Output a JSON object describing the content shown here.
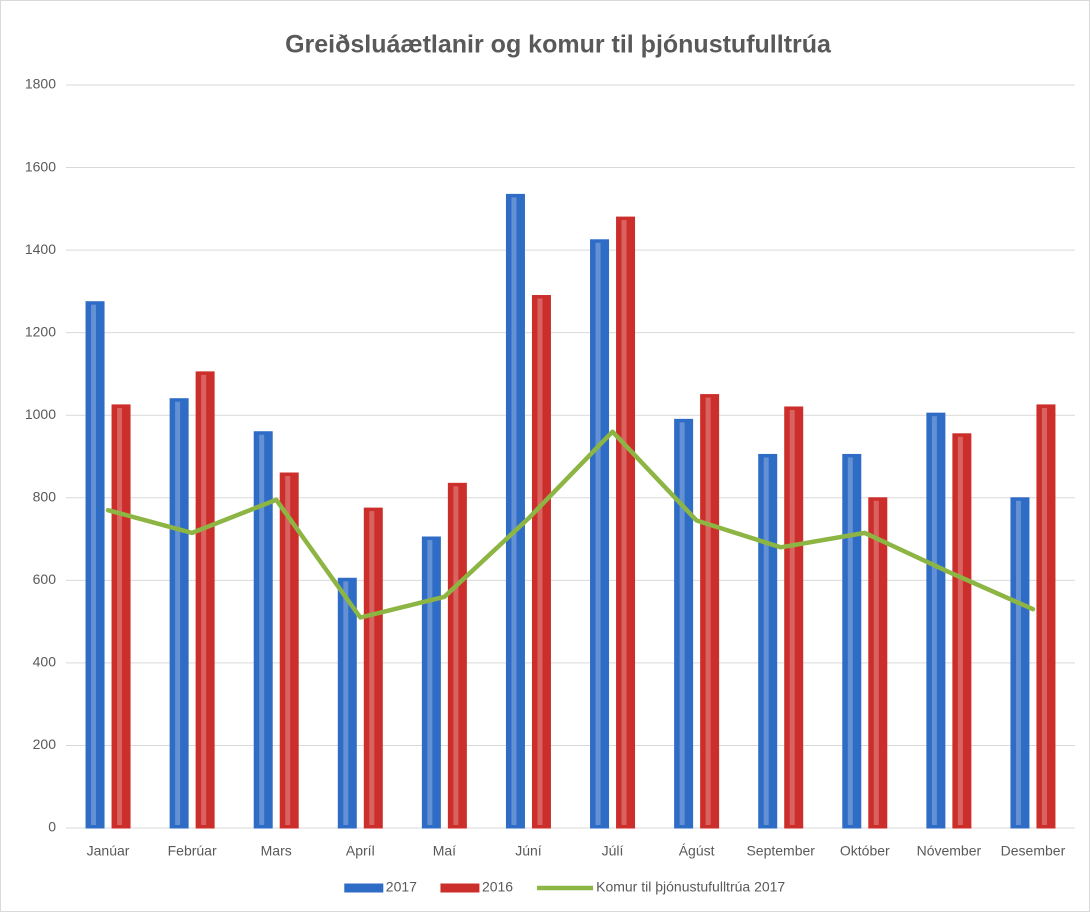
{
  "chart_data": {
    "type": "bar",
    "title": "Greiðsluáætlanir og komur til þjónustufulltrúa",
    "categories": [
      "Janúar",
      "Febrúar",
      "Mars",
      "Apríl",
      "Maí",
      "Júní",
      "Júlí",
      "Ágúst",
      "September",
      "Október",
      "Nóvember",
      "Desember"
    ],
    "series": [
      {
        "name": "2017",
        "type": "bar",
        "color": "#2f6cc6",
        "values": [
          1275,
          1040,
          960,
          605,
          705,
          1535,
          1425,
          990,
          905,
          905,
          1005,
          800
        ]
      },
      {
        "name": "2016",
        "type": "bar",
        "color": "#cc2f2b",
        "values": [
          1025,
          1105,
          860,
          775,
          835,
          1290,
          1480,
          1050,
          1020,
          800,
          955,
          1025
        ]
      },
      {
        "name": "Komur til þjónustufulltrúa 2017",
        "type": "line",
        "color": "#8db543",
        "values": [
          770,
          715,
          795,
          510,
          560,
          750,
          960,
          745,
          680,
          715,
          620,
          530
        ]
      }
    ],
    "ylim": [
      0,
      1800
    ],
    "yticks": [
      0,
      200,
      400,
      600,
      800,
      1000,
      1200,
      1400,
      1600,
      1800
    ],
    "grid": true,
    "legend": "bottom"
  }
}
